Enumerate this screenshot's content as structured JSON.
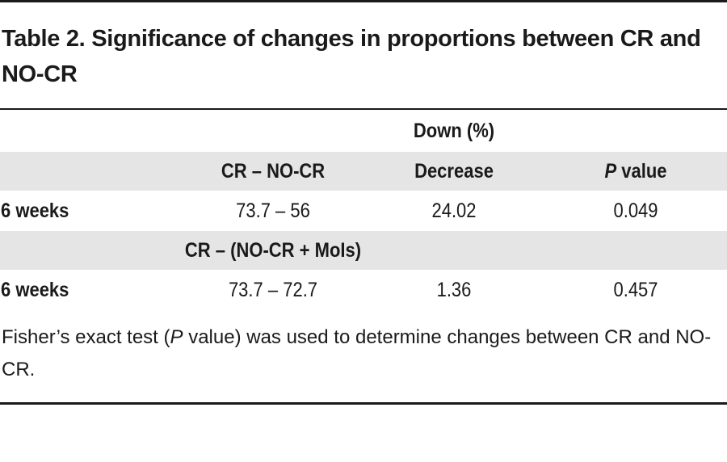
{
  "table": {
    "title": "Table 2. Significance of changes in proportions between CR and NO-CR",
    "group_header": "Down (%)",
    "col_comparison": "CR – NO-CR",
    "col_decrease": "Decrease",
    "col_p_italic": "P",
    "col_p_rest": " value",
    "rows": [
      {
        "label": "6 weeks",
        "comparison": "73.7 – 56",
        "decrease": "24.02",
        "p": "0.049"
      },
      {
        "label": "6 weeks",
        "comparison": "73.7 – 72.7",
        "decrease": "1.36",
        "p": "0.457"
      }
    ],
    "subheader": "CR – (NO-CR + MoIs)",
    "footnote_pre": "Fisher’s exact test (",
    "footnote_italic": "P",
    "footnote_post": " value) was used to determine changes between CR and NO-CR."
  }
}
